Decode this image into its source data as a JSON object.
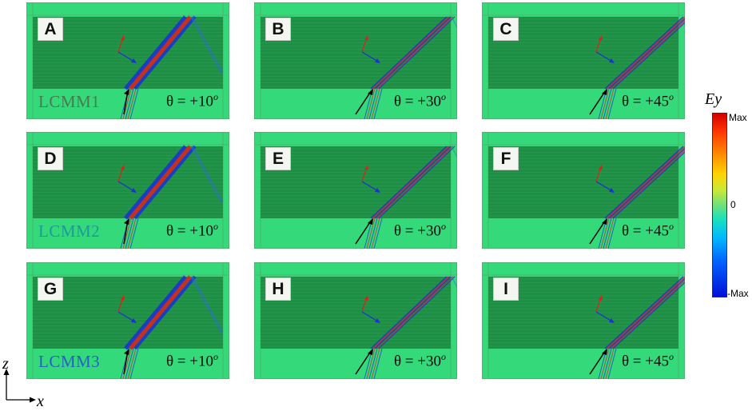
{
  "panels": [
    {
      "letter": "A",
      "label": "LCMM1",
      "label_color": "#4a7a52",
      "angle_text": "θ = +10",
      "angle_deg": 10
    },
    {
      "letter": "B",
      "label": "",
      "label_color": "#4a7a52",
      "angle_text": "θ = +30",
      "angle_deg": 30
    },
    {
      "letter": "C",
      "label": "",
      "label_color": "#4a7a52",
      "angle_text": "θ = +45",
      "angle_deg": 45
    },
    {
      "letter": "D",
      "label": "LCMM2",
      "label_color": "#1e9a9a",
      "angle_text": "θ = +10",
      "angle_deg": 10
    },
    {
      "letter": "E",
      "label": "",
      "label_color": "#1e9a9a",
      "angle_text": "θ = +30",
      "angle_deg": 30
    },
    {
      "letter": "F",
      "label": "",
      "label_color": "#1e9a9a",
      "angle_text": "θ = +45",
      "angle_deg": 45
    },
    {
      "letter": "G",
      "label": "LCMM3",
      "label_color": "#2860c8",
      "angle_text": "θ = +10",
      "angle_deg": 10
    },
    {
      "letter": "H",
      "label": "",
      "label_color": "#2860c8",
      "angle_text": "θ = +30",
      "angle_deg": 30
    },
    {
      "letter": "I",
      "label": "",
      "label_color": "#2860c8",
      "angle_text": "θ = +45",
      "angle_deg": 45
    }
  ],
  "colorbar": {
    "title": "Ey",
    "max_label": "Max",
    "zero_label": "0",
    "min_label": "-Max"
  },
  "axes": {
    "z_label": "z",
    "x_label": "x"
  },
  "degree_symbol": "o",
  "colors": {
    "background_field": "#34d97a",
    "metamaterial_band": "#1f8f46",
    "beam_red": "#e0201a",
    "beam_blue": "#1a30d8"
  }
}
